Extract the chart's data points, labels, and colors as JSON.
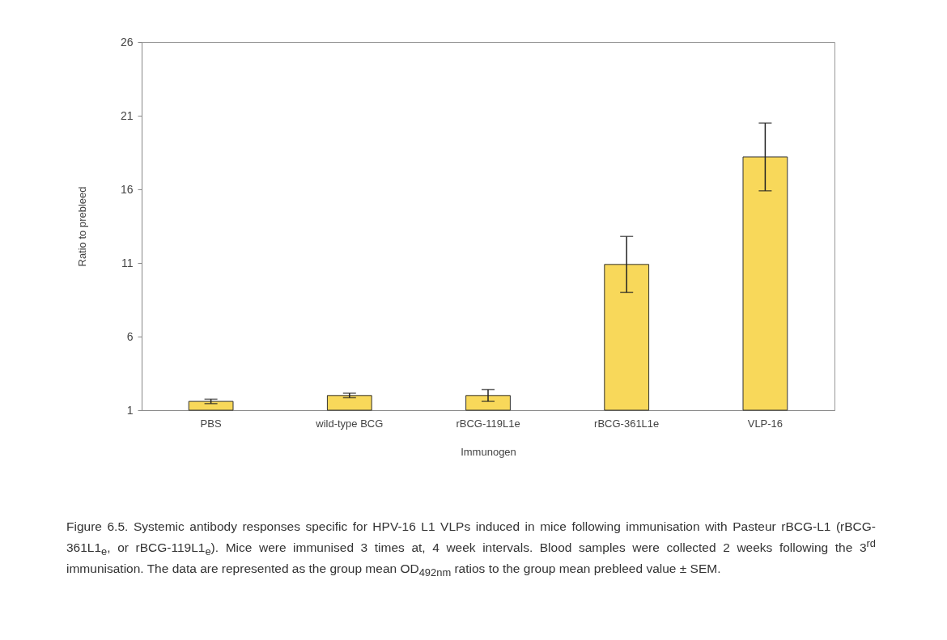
{
  "chart_data": {
    "type": "bar",
    "xlabel": "Immunogen",
    "ylabel": "Ratio to prebleed",
    "categories": [
      "PBS",
      "wild-type BCG",
      "rBCG-119L1e",
      "rBCG-361L1e",
      "VLP-16"
    ],
    "values": [
      1.6,
      2.0,
      2.0,
      10.9,
      18.2
    ],
    "errors": [
      0.15,
      0.15,
      0.4,
      1.9,
      2.3
    ],
    "color": "#f8d85a",
    "ylim": [
      1,
      26
    ],
    "yticks": [
      1,
      6,
      11,
      16,
      21,
      26
    ],
    "grid": false,
    "annotations": [
      "Figure 6.5.  Systemic antibody responses specific for HPV-16 L1 VLPs induced in mice following immunisation with Pasteur rBCG-L1 (rBCG-361L1$_{e}$, or rBCG-119L1$_{e}$).  Mice were immunised 3 times at, 4 week intervals.  Blood samples were collected 2 weeks following the 3$^{rd}$ immunisation.  The data are represented as the group mean OD$_{492nm}$ ratios to the group mean prebleed value ± SEM."
    ]
  }
}
